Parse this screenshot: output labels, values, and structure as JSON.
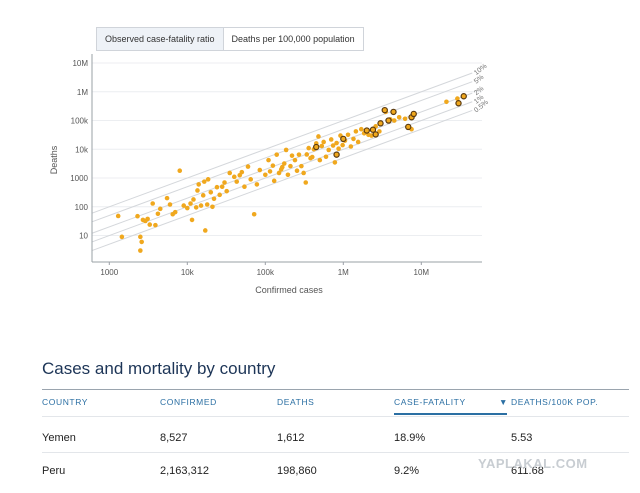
{
  "toggle": {
    "options": [
      "Observed case-fatality ratio",
      "Deaths per 100,000 population"
    ]
  },
  "chart_data": {
    "type": "scatter",
    "xscale": "log",
    "yscale": "log",
    "xlabel": "Confirmed cases",
    "ylabel": "Deaths",
    "xlim": [
      600,
      60000000
    ],
    "ylim": [
      1.2,
      15000000
    ],
    "xticks": [
      {
        "v": 1000,
        "label": "1000"
      },
      {
        "v": 10000,
        "label": "10k"
      },
      {
        "v": 100000,
        "label": "100k"
      },
      {
        "v": 1000000,
        "label": "1M"
      },
      {
        "v": 10000000,
        "label": "10M"
      }
    ],
    "yticks": [
      {
        "v": 10,
        "label": "10"
      },
      {
        "v": 100,
        "label": "100"
      },
      {
        "v": 1000,
        "label": "1000"
      },
      {
        "v": 10000,
        "label": "10k"
      },
      {
        "v": 100000,
        "label": "100k"
      },
      {
        "v": 1000000,
        "label": "1M"
      },
      {
        "v": 10000000,
        "label": "10M"
      }
    ],
    "ratio_lines": [
      {
        "ratio": 0.1,
        "label": "10%"
      },
      {
        "ratio": 0.05,
        "label": "5%"
      },
      {
        "ratio": 0.02,
        "label": "2%"
      },
      {
        "ratio": 0.01,
        "label": "1%"
      },
      {
        "ratio": 0.005,
        "label": "0.5%"
      }
    ],
    "point_color": "#f0a81e",
    "highlight_stroke": "#5a3a10",
    "points": [
      [
        1300,
        48
      ],
      [
        1450,
        9
      ],
      [
        2300,
        47
      ],
      [
        2500,
        9
      ],
      [
        2500,
        3
      ],
      [
        2600,
        6
      ],
      [
        2700,
        35
      ],
      [
        2900,
        32
      ],
      [
        3100,
        38
      ],
      [
        3300,
        24
      ],
      [
        3600,
        130
      ],
      [
        3900,
        23
      ],
      [
        4200,
        57
      ],
      [
        4500,
        85
      ],
      [
        5500,
        200
      ],
      [
        6000,
        120
      ],
      [
        6500,
        55
      ],
      [
        7000,
        65
      ],
      [
        8000,
        1800
      ],
      [
        9000,
        110
      ],
      [
        10000,
        90
      ],
      [
        11000,
        130
      ],
      [
        11500,
        35
      ],
      [
        12000,
        180
      ],
      [
        13000,
        95
      ],
      [
        13500,
        370
      ],
      [
        14000,
        600
      ],
      [
        15000,
        110
      ],
      [
        16000,
        250
      ],
      [
        16500,
        750
      ],
      [
        17000,
        15
      ],
      [
        18000,
        120
      ],
      [
        18500,
        900
      ],
      [
        20000,
        320
      ],
      [
        21000,
        100
      ],
      [
        22000,
        190
      ],
      [
        24000,
        480
      ],
      [
        26000,
        260
      ],
      [
        28000,
        500
      ],
      [
        30000,
        700
      ],
      [
        32000,
        350
      ],
      [
        35000,
        1500
      ],
      [
        40000,
        1100
      ],
      [
        43000,
        750
      ],
      [
        47000,
        1250
      ],
      [
        50000,
        1600
      ],
      [
        54000,
        500
      ],
      [
        60000,
        2500
      ],
      [
        65000,
        900
      ],
      [
        72000,
        55
      ],
      [
        78000,
        600
      ],
      [
        85000,
        1900
      ],
      [
        100000,
        1300
      ],
      [
        110000,
        4200
      ],
      [
        115000,
        1700
      ],
      [
        125000,
        2700
      ],
      [
        130000,
        800
      ],
      [
        140000,
        6500
      ],
      [
        150000,
        1500
      ],
      [
        160000,
        2000
      ],
      [
        165000,
        2400
      ],
      [
        175000,
        3200
      ],
      [
        185000,
        9500
      ],
      [
        195000,
        1300
      ],
      [
        210000,
        2600
      ],
      [
        220000,
        6000
      ],
      [
        240000,
        4200
      ],
      [
        255000,
        1800
      ],
      [
        270000,
        6500
      ],
      [
        290000,
        2600
      ],
      [
        310000,
        1500
      ],
      [
        330000,
        700
      ],
      [
        340000,
        6600
      ],
      [
        360000,
        11000
      ],
      [
        380000,
        4900
      ],
      [
        400000,
        5400
      ],
      [
        420000,
        10000
      ],
      [
        450000,
        16000
      ],
      [
        480000,
        28000
      ],
      [
        500000,
        4200
      ],
      [
        530000,
        13000
      ],
      [
        560000,
        18000
      ],
      [
        600000,
        5500
      ],
      [
        650000,
        9500
      ],
      [
        700000,
        22000
      ],
      [
        740000,
        13500
      ],
      [
        780000,
        3500
      ],
      [
        820000,
        16500
      ],
      [
        870000,
        10500
      ],
      [
        920000,
        30000
      ],
      [
        980000,
        14000
      ],
      [
        1050000,
        20000
      ],
      [
        1150000,
        32000
      ],
      [
        1250000,
        12500
      ],
      [
        1350000,
        23000
      ],
      [
        1450000,
        42000
      ],
      [
        1550000,
        18000
      ],
      [
        1700000,
        50000
      ],
      [
        1850000,
        36000
      ],
      [
        2100000,
        32000
      ],
      [
        2300000,
        30000
      ],
      [
        2600000,
        63000
      ],
      [
        2900000,
        42000
      ],
      [
        3500000,
        200000
      ],
      [
        4000000,
        110000
      ],
      [
        4500000,
        100000
      ],
      [
        5200000,
        130000
      ],
      [
        6200000,
        115000
      ],
      [
        7500000,
        50000
      ],
      [
        21000000,
        450000
      ],
      [
        29000000,
        580000
      ]
    ],
    "highlighted": [
      [
        450000,
        12000
      ],
      [
        820000,
        6500
      ],
      [
        1000000,
        23000
      ],
      [
        2000000,
        45000
      ],
      [
        2400000,
        48000
      ],
      [
        2600000,
        33000
      ],
      [
        3000000,
        80000
      ],
      [
        3400000,
        230000
      ],
      [
        3800000,
        100000
      ],
      [
        4400000,
        200000
      ],
      [
        6800000,
        60000
      ],
      [
        7500000,
        130000
      ],
      [
        8000000,
        170000
      ],
      [
        30000000,
        400000
      ],
      [
        35000000,
        700000
      ]
    ]
  },
  "table": {
    "title": "Cases and mortality by country",
    "columns": [
      "COUNTRY",
      "CONFIRMED",
      "DEATHS",
      "CASE-FATALITY",
      "DEATHS/100K POP."
    ],
    "sort_arrow": "▼",
    "rows": [
      {
        "country": "Yemen",
        "confirmed": "8,527",
        "deaths": "1,612",
        "cfr": "18.9%",
        "per100k": "5.53"
      },
      {
        "country": "Peru",
        "confirmed": "2,163,312",
        "deaths": "198,860",
        "cfr": "9.2%",
        "per100k": "611.68"
      }
    ]
  },
  "watermark": "YAPLAKAL.COM"
}
